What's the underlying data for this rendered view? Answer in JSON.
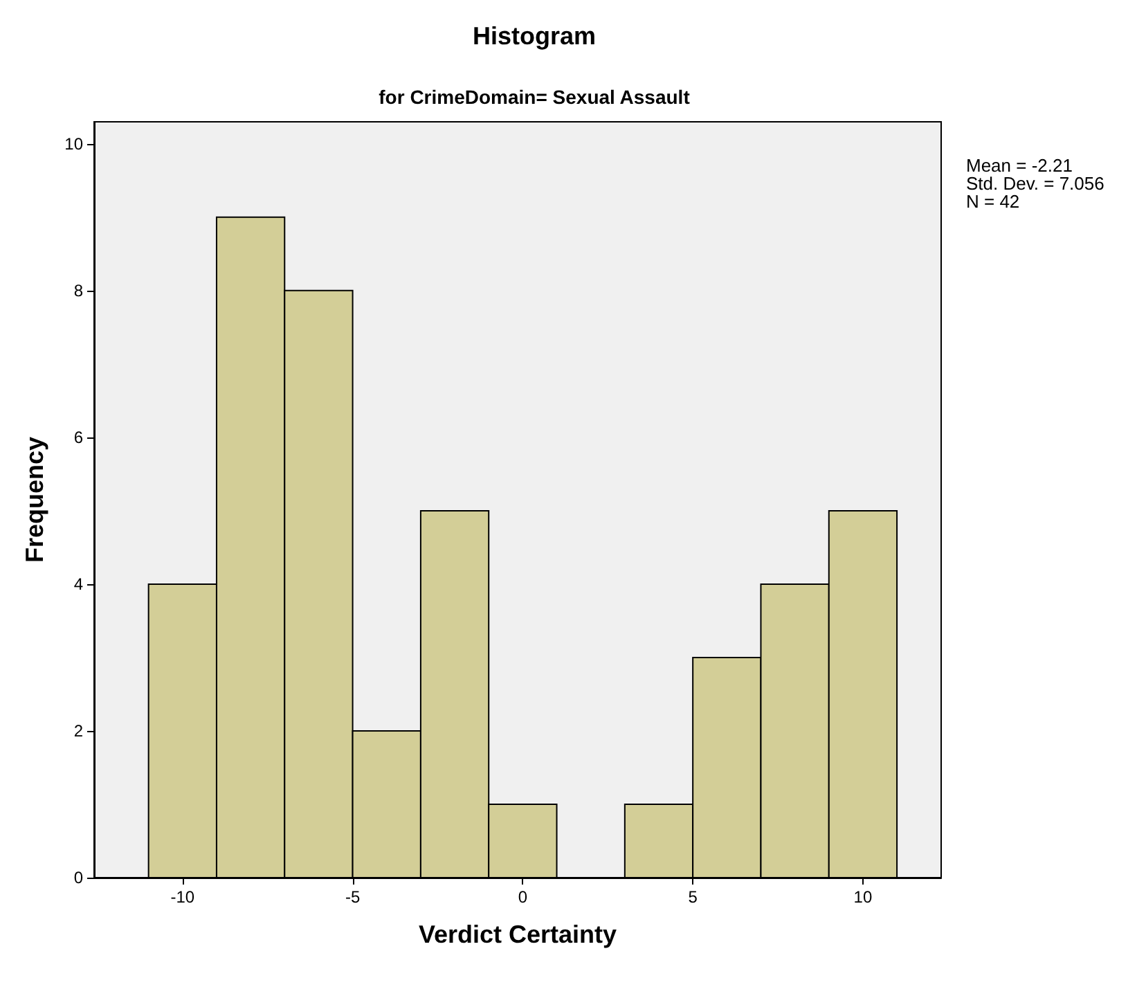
{
  "chart_data": {
    "type": "histogram",
    "title": "Histogram",
    "subtitle": "for CrimeDomain= Sexual Assault",
    "xlabel": "Verdict Certainty",
    "ylabel": "Frequency",
    "bins": [
      -11,
      -9,
      -7,
      -5,
      -3,
      -1,
      1,
      3,
      5,
      7,
      9,
      11
    ],
    "values": [
      4,
      9,
      8,
      2,
      5,
      1,
      0,
      1,
      3,
      4,
      5
    ],
    "color": "#d3ce97",
    "xlim": [
      -12.6,
      12.3
    ],
    "xticks": [
      -10,
      -5,
      0,
      5,
      10
    ],
    "ylim": [
      0,
      10.3
    ],
    "yticks": [
      0,
      2,
      4,
      6,
      8,
      10
    ],
    "grid": false,
    "annotations": [
      "Mean = -2.21",
      "Std. Dev. = 7.056",
      "N = 42"
    ]
  }
}
